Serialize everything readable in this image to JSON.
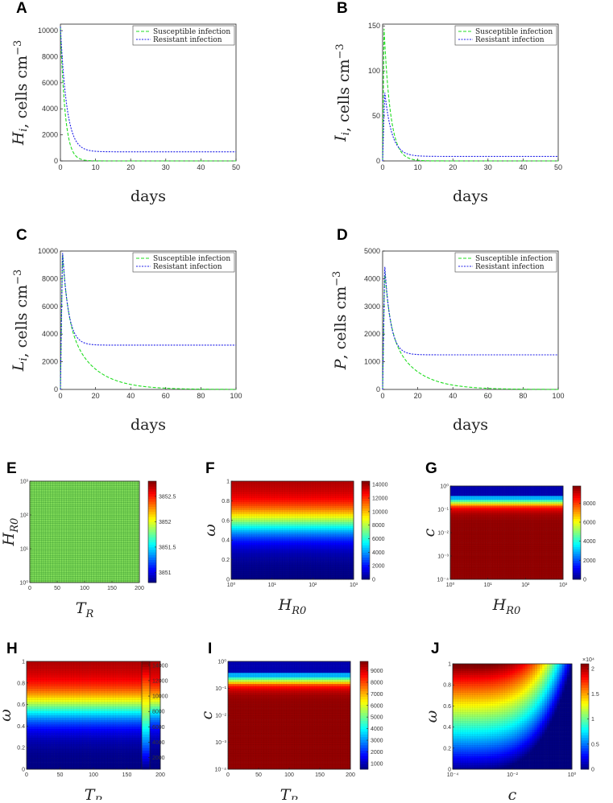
{
  "colors": {
    "susceptible": "#22dd22",
    "resistant": "#2020e8",
    "grid_green": "#7ed957",
    "cell_lines": "#2a8a2a"
  },
  "chart_data": [
    {
      "id": "A",
      "type": "line",
      "panel_label": "A",
      "xlabel": "days",
      "ylabel": "H_i, cells cm^-3",
      "ylabel_parts": {
        "sym": "H",
        "sub": "i",
        "unit": ", cells cm",
        "exp": "−3"
      },
      "xlim": [
        0,
        50
      ],
      "ylim": [
        0,
        10500
      ],
      "xticks": [
        0,
        10,
        20,
        30,
        40,
        50
      ],
      "yticks": [
        0,
        2000,
        4000,
        6000,
        8000,
        10000
      ],
      "legend": [
        "Susceptible infection",
        "Resistant infection"
      ],
      "series": [
        {
          "name": "Susceptible infection",
          "x0": 0,
          "y0": 10300,
          "decay": 0.75,
          "plateau": 0
        },
        {
          "name": "Resistant infection",
          "x0": 0,
          "y0": 10300,
          "decay": 0.55,
          "plateau": 700
        }
      ]
    },
    {
      "id": "B",
      "type": "line",
      "panel_label": "B",
      "xlabel": "days",
      "ylabel": "I_i, cells cm^-3",
      "ylabel_parts": {
        "sym": "I",
        "sub": "i",
        "unit": ", cells cm",
        "exp": "−3"
      },
      "xlim": [
        0,
        50
      ],
      "ylim": [
        0,
        152
      ],
      "xticks": [
        0,
        10,
        20,
        30,
        40,
        50
      ],
      "yticks": [
        0,
        50,
        100,
        150
      ],
      "legend": [
        "Susceptible infection",
        "Resistant infection"
      ],
      "series": [
        {
          "name": "Susceptible infection",
          "peak_x": 0.4,
          "peak_y": 148,
          "decay": 0.55,
          "plateau": 0
        },
        {
          "name": "Resistant infection",
          "peak_x": 0.6,
          "peak_y": 77,
          "decay": 0.5,
          "plateau": 5
        }
      ]
    },
    {
      "id": "C",
      "type": "line",
      "panel_label": "C",
      "xlabel": "days",
      "ylabel": "L_i, cells cm^-3",
      "ylabel_parts": {
        "sym": "L",
        "sub": "i",
        "unit": ", cells cm",
        "exp": "−3"
      },
      "xlim": [
        0,
        100
      ],
      "ylim": [
        0,
        10000
      ],
      "xticks": [
        0,
        20,
        40,
        60,
        80,
        100
      ],
      "yticks": [
        0,
        2000,
        4000,
        6000,
        8000,
        10000
      ],
      "legend": [
        "Susceptible infection",
        "Resistant infection"
      ],
      "series": [
        {
          "name": "Susceptible infection",
          "peak_x": 1.2,
          "peak_y": 9900,
          "decay": 0.07,
          "plateau": 0,
          "fast": 0.35,
          "fast_frac": 0.45
        },
        {
          "name": "Resistant infection",
          "peak_x": 1.2,
          "peak_y": 10000,
          "decay": 0.3,
          "plateau": 3200
        }
      ]
    },
    {
      "id": "D",
      "type": "line",
      "panel_label": "D",
      "xlabel": "days",
      "ylabel": "P, cells cm^-3",
      "ylabel_parts": {
        "sym": "P",
        "sub": "",
        "unit": ", cells cm",
        "exp": "−3"
      },
      "xlim": [
        0,
        100
      ],
      "ylim": [
        0,
        5000
      ],
      "xticks": [
        0,
        20,
        40,
        60,
        80,
        100
      ],
      "yticks": [
        0,
        1000,
        2000,
        3000,
        4000,
        5000
      ],
      "legend": [
        "Susceptible infection",
        "Resistant infection"
      ],
      "series": [
        {
          "name": "Susceptible infection",
          "peak_x": 1.2,
          "peak_y": 4300,
          "decay": 0.07,
          "plateau": 0,
          "fast": 0.35,
          "fast_frac": 0.45
        },
        {
          "name": "Resistant infection",
          "peak_x": 1.2,
          "peak_y": 4500,
          "decay": 0.3,
          "plateau": 1250
        }
      ]
    },
    {
      "id": "E",
      "type": "heatmap",
      "panel_label": "E",
      "xlabel": "T_R",
      "xlabel_parts": {
        "sym": "T",
        "sub": "R"
      },
      "ylabel": "H_R0",
      "ylabel_parts": {
        "sym": "H",
        "sub": "R0"
      },
      "x_scale": "linear",
      "xlim": [
        0,
        200
      ],
      "xticks": [
        "0",
        "50",
        "100",
        "150",
        "200"
      ],
      "y_scale": "log",
      "ylim": [
        1,
        1000
      ],
      "yticks": [
        "10⁰",
        "10¹",
        "10²",
        "10³"
      ],
      "pattern": "uniform",
      "colorbar": {
        "min": 3850.8,
        "max": 3852.8,
        "ticks": [
          3851,
          3851.5,
          3852,
          3852.5
        ]
      }
    },
    {
      "id": "F",
      "type": "heatmap",
      "panel_label": "F",
      "xlabel": "H_R0",
      "xlabel_parts": {
        "sym": "H",
        "sub": "R0"
      },
      "ylabel": "ω",
      "ylabel_parts": {
        "sym": "ω",
        "sub": ""
      },
      "x_scale": "log",
      "xlim": [
        1,
        1000
      ],
      "xticks": [
        "10⁰",
        "10¹",
        "10²",
        "10³"
      ],
      "y_scale": "linear",
      "ylim": [
        0,
        1
      ],
      "yticks": [
        "0",
        "0.2",
        "0.4",
        "0.6",
        "0.8",
        "1"
      ],
      "pattern": "omega",
      "colorbar": {
        "min": 0,
        "max": 14500,
        "ticks": [
          0,
          2000,
          4000,
          6000,
          8000,
          10000,
          12000,
          14000
        ]
      }
    },
    {
      "id": "G",
      "type": "heatmap",
      "panel_label": "G",
      "xlabel": "H_R0",
      "xlabel_parts": {
        "sym": "H",
        "sub": "R0"
      },
      "ylabel": "c",
      "ylabel_parts": {
        "sym": "c",
        "sub": ""
      },
      "x_scale": "log",
      "xlim": [
        1,
        1000
      ],
      "xticks": [
        "10⁰",
        "10¹",
        "10²",
        "10³"
      ],
      "y_scale": "log",
      "ylim": [
        0.0001,
        1
      ],
      "yticks": [
        "10⁻⁴",
        "10⁻³",
        "10⁻²",
        "10⁻¹",
        "10⁰"
      ],
      "pattern": "c",
      "colorbar": {
        "min": 0,
        "max": 9800,
        "ticks": [
          0,
          2000,
          4000,
          6000,
          8000
        ]
      }
    },
    {
      "id": "H",
      "type": "heatmap",
      "panel_label": "H",
      "xlabel": "T_R",
      "xlabel_parts": {
        "sym": "T",
        "sub": "R"
      },
      "ylabel": "ω",
      "ylabel_parts": {
        "sym": "ω",
        "sub": ""
      },
      "x_scale": "linear",
      "xlim": [
        0,
        200
      ],
      "xticks": [
        "0",
        "50",
        "100",
        "150",
        "200"
      ],
      "y_scale": "linear",
      "ylim": [
        0,
        1
      ],
      "yticks": [
        "0",
        "0.2",
        "0.4",
        "0.6",
        "0.8",
        "1"
      ],
      "pattern": "omega",
      "colorbar": {
        "min": 500,
        "max": 14500,
        "ticks": [
          2000,
          4000,
          6000,
          8000,
          10000,
          12000,
          14000
        ]
      }
    },
    {
      "id": "I",
      "type": "heatmap",
      "panel_label": "I",
      "xlabel": "T_R",
      "xlabel_parts": {
        "sym": "T",
        "sub": "R"
      },
      "ylabel": "c",
      "ylabel_parts": {
        "sym": "c",
        "sub": ""
      },
      "x_scale": "linear",
      "xlim": [
        0,
        200
      ],
      "xticks": [
        "0",
        "50",
        "100",
        "150",
        "200"
      ],
      "y_scale": "log",
      "ylim": [
        0.0001,
        1
      ],
      "yticks": [
        "10⁻⁴",
        "10⁻³",
        "10⁻²",
        "10⁻¹",
        "10⁰"
      ],
      "pattern": "c",
      "colorbar": {
        "min": 500,
        "max": 9800,
        "ticks": [
          1000,
          2000,
          3000,
          4000,
          5000,
          6000,
          7000,
          8000,
          9000
        ]
      }
    },
    {
      "id": "J",
      "type": "heatmap",
      "panel_label": "J",
      "xlabel": "c",
      "xlabel_parts": {
        "sym": "c",
        "sub": ""
      },
      "ylabel": "ω",
      "ylabel_parts": {
        "sym": "ω",
        "sub": ""
      },
      "x_scale": "log",
      "xlim": [
        0.0001,
        1
      ],
      "xticks": [
        "10⁻⁴",
        "10⁻²",
        "10⁰"
      ],
      "y_scale": "linear",
      "ylim": [
        0,
        1
      ],
      "yticks": [
        "0",
        "0.2",
        "0.4",
        "0.6",
        "0.8",
        "1"
      ],
      "pattern": "omega_c",
      "colorbar": {
        "min": 0,
        "max": 2.1,
        "ticks": [
          0,
          0.5,
          1,
          1.5,
          2
        ],
        "multiplier": "×10⁴"
      }
    }
  ]
}
